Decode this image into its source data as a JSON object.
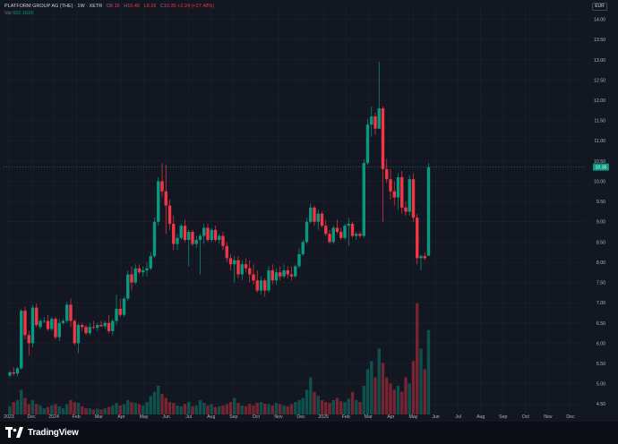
{
  "legend": {
    "symbol": "PLATFORM GROUP AG (THE) · 1W · XETR",
    "o_label": "O",
    "o_value": "8.16",
    "h_label": "H",
    "h_value": "10.45",
    "l_label": "L",
    "l_value": "8.16",
    "c_label": "C",
    "c_value": "10.35",
    "change": "+2.24 (+27.48%)",
    "vol_label": "Vol",
    "vol_value": "602.161K"
  },
  "currency": "EUR",
  "brand": "TradingView",
  "colors": {
    "up": "#089981",
    "down": "#f23645",
    "background": "#131722",
    "grid": "#1e222d",
    "text": "#b2b5be"
  },
  "chart_data": {
    "type": "candlestick",
    "ylim": [
      4.35,
      14.3
    ],
    "y_ticks": [
      "4.50",
      "5.00",
      "5.50",
      "6.00",
      "6.50",
      "7.00",
      "7.50",
      "8.00",
      "8.50",
      "9.00",
      "9.50",
      "10.00",
      "10.50",
      "11.00",
      "11.50",
      "12.00",
      "12.50",
      "13.00",
      "13.50",
      "14.00"
    ],
    "x_ticks": [
      "2023",
      "Dec",
      "2024",
      "Feb",
      "Mar",
      "Apr",
      "May",
      "Jun",
      "Jul",
      "Aug",
      "Sep",
      "Oct",
      "Nov",
      "Dec",
      "2025",
      "Feb",
      "Mar",
      "Apr",
      "May",
      "Jun",
      "Jul",
      "Aug",
      "Sep",
      "Oct",
      "Nov",
      "Dec"
    ],
    "last_price_label": "10.35",
    "series": [
      {
        "name": "PLATFORM GROUP AG (THE)",
        "ohlc": [
          [
            5.2,
            5.32,
            5.15,
            5.28
          ],
          [
            5.28,
            5.4,
            5.2,
            5.25
          ],
          [
            5.25,
            5.42,
            5.18,
            5.38
          ],
          [
            5.38,
            6.85,
            5.35,
            6.8
          ],
          [
            6.8,
            6.9,
            6.1,
            6.2
          ],
          [
            6.2,
            6.3,
            5.7,
            6.0
          ],
          [
            6.0,
            6.95,
            5.9,
            6.88
          ],
          [
            6.88,
            6.98,
            6.4,
            6.45
          ],
          [
            6.4,
            6.6,
            6.35,
            6.55
          ],
          [
            6.55,
            6.65,
            6.5,
            6.55
          ],
          [
            6.55,
            6.7,
            6.3,
            6.35
          ],
          [
            6.35,
            6.65,
            6.3,
            6.6
          ],
          [
            6.6,
            6.65,
            6.1,
            6.15
          ],
          [
            6.15,
            6.6,
            6.05,
            6.5
          ],
          [
            6.5,
            6.6,
            6.45,
            6.55
          ],
          [
            6.55,
            7.02,
            6.5,
            6.95
          ],
          [
            6.95,
            7.1,
            6.4,
            6.55
          ],
          [
            6.55,
            6.6,
            5.95,
            6.0
          ],
          [
            6.0,
            6.5,
            5.75,
            6.45
          ],
          [
            6.45,
            6.5,
            6.3,
            6.4
          ],
          [
            6.4,
            6.45,
            6.2,
            6.25
          ],
          [
            6.25,
            6.5,
            6.2,
            6.4
          ],
          [
            6.4,
            6.55,
            6.35,
            6.38
          ],
          [
            6.38,
            6.5,
            6.3,
            6.45
          ],
          [
            6.45,
            6.55,
            6.4,
            6.42
          ],
          [
            6.42,
            6.55,
            6.35,
            6.5
          ],
          [
            6.5,
            6.7,
            6.25,
            6.3
          ],
          [
            6.3,
            6.6,
            6.2,
            6.55
          ],
          [
            6.55,
            7.2,
            6.45,
            6.85
          ],
          [
            6.85,
            7.1,
            6.65,
            6.7
          ],
          [
            6.7,
            7.15,
            6.65,
            7.1
          ],
          [
            7.1,
            7.8,
            7.05,
            7.7
          ],
          [
            7.7,
            7.9,
            7.3,
            7.5
          ],
          [
            7.5,
            7.95,
            7.45,
            7.85
          ],
          [
            7.85,
            7.95,
            7.7,
            7.75
          ],
          [
            7.75,
            7.9,
            7.65,
            7.8
          ],
          [
            7.8,
            8.0,
            7.65,
            7.85
          ],
          [
            7.85,
            8.25,
            7.8,
            8.15
          ],
          [
            8.15,
            9.1,
            8.1,
            9.0
          ],
          [
            9.0,
            10.1,
            8.9,
            10.0
          ],
          [
            10.0,
            10.45,
            9.6,
            9.75
          ],
          [
            9.75,
            10.4,
            8.7,
            9.4
          ],
          [
            9.4,
            9.55,
            8.8,
            8.95
          ],
          [
            8.95,
            9.15,
            8.3,
            8.45
          ],
          [
            8.45,
            8.7,
            8.3,
            8.6
          ],
          [
            8.6,
            8.95,
            8.55,
            8.9
          ],
          [
            8.9,
            9.05,
            8.5,
            8.55
          ],
          [
            8.55,
            8.8,
            7.9,
            8.75
          ],
          [
            8.75,
            8.8,
            8.4,
            8.45
          ],
          [
            8.45,
            8.65,
            8.35,
            8.55
          ],
          [
            8.55,
            8.7,
            7.7,
            8.65
          ],
          [
            8.65,
            8.95,
            8.45,
            8.85
          ],
          [
            8.85,
            8.95,
            8.5,
            8.55
          ],
          [
            8.55,
            8.85,
            8.5,
            8.8
          ],
          [
            8.8,
            8.9,
            8.5,
            8.55
          ],
          [
            8.55,
            8.7,
            8.45,
            8.65
          ],
          [
            8.65,
            8.75,
            8.3,
            8.4
          ],
          [
            8.4,
            8.5,
            8.0,
            8.1
          ],
          [
            8.1,
            8.2,
            7.8,
            7.95
          ],
          [
            7.95,
            8.15,
            7.5,
            8.05
          ],
          [
            8.05,
            8.15,
            7.6,
            7.7
          ],
          [
            7.7,
            8.05,
            7.55,
            7.95
          ],
          [
            7.95,
            8.1,
            7.75,
            7.85
          ],
          [
            7.85,
            8.05,
            7.5,
            7.7
          ],
          [
            7.7,
            7.95,
            7.45,
            7.55
          ],
          [
            7.55,
            7.8,
            7.25,
            7.3
          ],
          [
            7.3,
            7.65,
            7.2,
            7.55
          ],
          [
            7.55,
            7.6,
            7.15,
            7.3
          ],
          [
            7.3,
            7.9,
            7.25,
            7.8
          ],
          [
            7.8,
            7.95,
            7.45,
            7.55
          ],
          [
            7.55,
            7.85,
            7.45,
            7.75
          ],
          [
            7.75,
            7.9,
            7.55,
            7.65
          ],
          [
            7.65,
            7.95,
            7.6,
            7.8
          ],
          [
            7.8,
            7.9,
            7.6,
            7.7
          ],
          [
            7.7,
            7.9,
            7.55,
            7.65
          ],
          [
            7.65,
            7.95,
            7.6,
            7.9
          ],
          [
            7.9,
            8.35,
            7.85,
            8.2
          ],
          [
            8.2,
            8.55,
            8.15,
            8.5
          ],
          [
            8.5,
            9.1,
            8.45,
            9.0
          ],
          [
            9.0,
            9.45,
            8.95,
            9.35
          ],
          [
            9.35,
            9.4,
            8.9,
            9.0
          ],
          [
            9.0,
            9.3,
            8.8,
            9.2
          ],
          [
            9.2,
            9.25,
            8.85,
            8.9
          ],
          [
            8.9,
            9.05,
            8.65,
            8.7
          ],
          [
            8.7,
            8.8,
            8.45,
            8.5
          ],
          [
            8.5,
            8.9,
            8.45,
            8.85
          ],
          [
            8.85,
            9.05,
            8.7,
            8.75
          ],
          [
            8.75,
            8.85,
            8.55,
            8.6
          ],
          [
            8.6,
            8.95,
            8.55,
            8.9
          ],
          [
            8.9,
            9.1,
            8.4,
            8.95
          ],
          [
            8.95,
            9.0,
            8.6,
            8.65
          ],
          [
            8.65,
            8.75,
            8.55,
            8.7
          ],
          [
            8.7,
            8.75,
            8.6,
            8.65
          ],
          [
            8.65,
            10.55,
            8.6,
            10.45
          ],
          [
            10.45,
            11.55,
            10.4,
            11.4
          ],
          [
            11.4,
            11.85,
            11.1,
            11.6
          ],
          [
            11.6,
            11.7,
            11.15,
            11.3
          ],
          [
            11.3,
            12.95,
            11.3,
            11.8
          ],
          [
            11.8,
            11.85,
            9.0,
            10.3
          ],
          [
            10.3,
            10.55,
            9.95,
            10.05
          ],
          [
            10.05,
            10.3,
            9.55,
            9.75
          ],
          [
            9.75,
            10.0,
            9.4,
            9.6
          ],
          [
            9.6,
            10.2,
            9.3,
            10.1
          ],
          [
            10.1,
            10.25,
            9.2,
            9.35
          ],
          [
            9.35,
            9.5,
            9.15,
            9.25
          ],
          [
            9.25,
            10.15,
            9.15,
            10.05
          ],
          [
            10.05,
            10.2,
            9.0,
            9.1
          ],
          [
            9.1,
            9.2,
            7.95,
            8.1
          ],
          [
            8.1,
            8.2,
            7.8,
            8.15
          ],
          [
            8.15,
            8.25,
            8.05,
            8.1
          ],
          [
            8.16,
            10.45,
            8.16,
            10.35
          ]
        ],
        "volume": [
          20,
          30,
          35,
          60,
          40,
          25,
          35,
          25,
          22,
          15,
          18,
          22,
          25,
          20,
          15,
          25,
          35,
          30,
          28,
          20,
          15,
          15,
          12,
          14,
          12,
          15,
          18,
          22,
          28,
          22,
          25,
          35,
          30,
          28,
          25,
          22,
          30,
          45,
          55,
          70,
          50,
          40,
          30,
          28,
          22,
          20,
          25,
          30,
          20,
          22,
          35,
          28,
          22,
          25,
          18,
          20,
          22,
          25,
          30,
          40,
          28,
          22,
          20,
          25,
          22,
          28,
          30,
          26,
          25,
          22,
          28,
          25,
          22,
          20,
          25,
          30,
          35,
          40,
          60,
          90,
          55,
          45,
          35,
          30,
          28,
          35,
          40,
          32,
          30,
          38,
          55,
          35,
          30,
          70,
          110,
          130,
          90,
          160,
          125,
          90,
          75,
          60,
          70,
          55,
          90,
          75,
          130,
          270,
          160,
          110,
          205
        ]
      }
    ]
  }
}
